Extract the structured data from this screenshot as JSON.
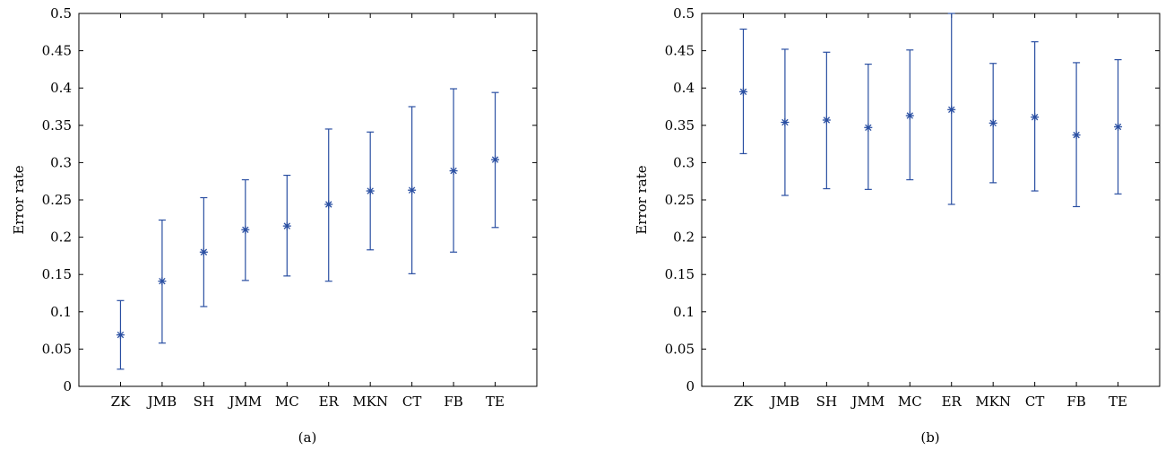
{
  "chart_data": [
    {
      "type": "scatter",
      "caption": "(a)",
      "ylabel": "Error rate",
      "xlabel": "",
      "ylim": [
        0,
        0.5
      ],
      "yticks": [
        "0",
        "0.05",
        "0.1",
        "0.15",
        "0.2",
        "0.25",
        "0.3",
        "0.35",
        "0.4",
        "0.45",
        "0.5"
      ],
      "categories": [
        "ZK",
        "JMB",
        "SH",
        "JMM",
        "MC",
        "ER",
        "MKN",
        "CT",
        "FB",
        "TE"
      ],
      "x": [
        1,
        2,
        3,
        4,
        5,
        6,
        7,
        8,
        9,
        10
      ],
      "values": [
        0.069,
        0.141,
        0.18,
        0.21,
        0.215,
        0.244,
        0.262,
        0.263,
        0.289,
        0.304
      ],
      "lower": [
        0.023,
        0.058,
        0.107,
        0.142,
        0.148,
        0.141,
        0.183,
        0.151,
        0.18,
        0.213
      ],
      "upper": [
        0.115,
        0.223,
        0.253,
        0.277,
        0.283,
        0.345,
        0.341,
        0.375,
        0.399,
        0.394
      ],
      "grid": false,
      "color": "#2a4fa2"
    },
    {
      "type": "scatter",
      "caption": "(b)",
      "ylabel": "Error rate",
      "xlabel": "",
      "ylim": [
        0,
        0.5
      ],
      "yticks": [
        "0",
        "0.05",
        "0.1",
        "0.15",
        "0.2",
        "0.25",
        "0.3",
        "0.35",
        "0.4",
        "0.45",
        "0.5"
      ],
      "categories": [
        "ZK",
        "JMB",
        "SH",
        "JMM",
        "MC",
        "ER",
        "MKN",
        "CT",
        "FB",
        "TE"
      ],
      "x": [
        1,
        2,
        3,
        4,
        5,
        6,
        7,
        8,
        9,
        10
      ],
      "values": [
        0.395,
        0.354,
        0.357,
        0.347,
        0.363,
        0.371,
        0.353,
        0.361,
        0.337,
        0.348
      ],
      "lower": [
        0.312,
        0.256,
        0.265,
        0.264,
        0.277,
        0.244,
        0.273,
        0.262,
        0.241,
        0.258
      ],
      "upper": [
        0.479,
        0.452,
        0.448,
        0.432,
        0.451,
        0.5,
        0.433,
        0.462,
        0.434,
        0.438
      ],
      "grid": false,
      "color": "#2a4fa2"
    }
  ]
}
